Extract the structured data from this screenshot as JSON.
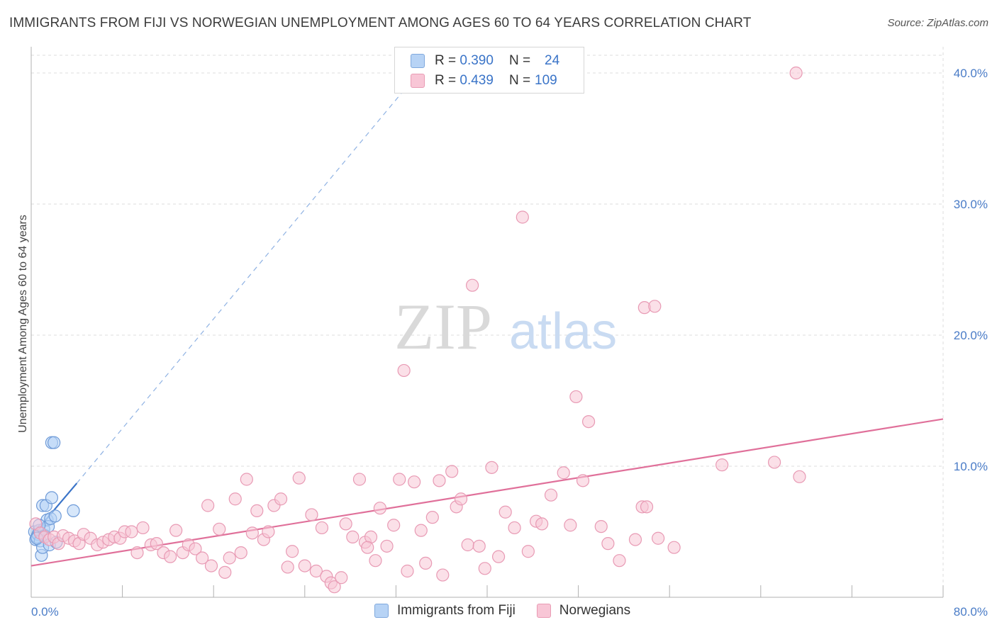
{
  "header": {
    "title": "IMMIGRANTS FROM FIJI VS NORWEGIAN UNEMPLOYMENT AMONG AGES 60 TO 64 YEARS CORRELATION CHART",
    "source": "Source: ZipAtlas.com"
  },
  "legend": {
    "rows": [
      {
        "r_label": "R =",
        "r_value": "0.390",
        "n_label": "N =",
        "n_value": "24"
      },
      {
        "r_label": "R =",
        "r_value": "0.439",
        "n_label": "N =",
        "n_value": "109"
      }
    ],
    "bottom": [
      "Immigrants from Fiji",
      "Norwegians"
    ]
  },
  "watermark": {
    "zip": "ZIP",
    "atlas": "atlas"
  },
  "colors": {
    "blue": "#3a74c8",
    "blue_fill": "#b7d3f5",
    "pink": "#e0709a",
    "pink_fill": "#f8c6d6",
    "grid": "#dcdcdc"
  },
  "chart_data": {
    "type": "scatter",
    "title": "IMMIGRANTS FROM FIJI VS NORWEGIAN UNEMPLOYMENT AMONG AGES 60 TO 64 YEARS CORRELATION CHART",
    "xlabel": "",
    "ylabel": "Unemployment Among Ages 60 to 64 years",
    "xlim": [
      0,
      80
    ],
    "ylim": [
      0,
      42
    ],
    "y_ticks": [
      10,
      20,
      30,
      40
    ],
    "y_tick_labels": [
      "10.0%",
      "20.0%",
      "30.0%",
      "40.0%"
    ],
    "x_tick_labels": [
      "0.0%",
      "80.0%"
    ],
    "series": [
      {
        "name": "Immigrants from Fiji",
        "color": "#3a74c8",
        "trend": {
          "x0": 0.2,
          "y0": 4.8,
          "x1": 4.0,
          "y1": 8.7,
          "dash_to_x": 33,
          "dash_to_y": 39
        },
        "points": [
          [
            0.3,
            5.0
          ],
          [
            0.4,
            4.4
          ],
          [
            0.5,
            4.6
          ],
          [
            0.6,
            4.8
          ],
          [
            0.7,
            5.1
          ],
          [
            0.8,
            4.3
          ],
          [
            0.9,
            3.2
          ],
          [
            1.0,
            3.8
          ],
          [
            1.0,
            7.0
          ],
          [
            1.1,
            5.2
          ],
          [
            1.2,
            4.7
          ],
          [
            1.3,
            7.0
          ],
          [
            1.4,
            5.9
          ],
          [
            1.5,
            5.4
          ],
          [
            1.6,
            4.0
          ],
          [
            1.7,
            6.0
          ],
          [
            1.8,
            7.6
          ],
          [
            1.8,
            11.8
          ],
          [
            2.0,
            11.8
          ],
          [
            2.1,
            6.2
          ],
          [
            0.5,
            4.5
          ],
          [
            2.2,
            4.2
          ],
          [
            3.7,
            6.6
          ],
          [
            0.7,
            5.5
          ]
        ]
      },
      {
        "name": "Norwegians",
        "color": "#e0709a",
        "trend": {
          "x0": 0,
          "y0": 2.4,
          "x1": 80,
          "y1": 13.6
        },
        "points": [
          [
            0.4,
            5.6
          ],
          [
            0.8,
            4.9
          ],
          [
            1.2,
            4.6
          ],
          [
            1.6,
            4.4
          ],
          [
            2.0,
            4.6
          ],
          [
            2.4,
            4.1
          ],
          [
            2.8,
            4.7
          ],
          [
            3.3,
            4.5
          ],
          [
            3.8,
            4.3
          ],
          [
            4.2,
            4.1
          ],
          [
            4.6,
            4.8
          ],
          [
            5.2,
            4.5
          ],
          [
            5.8,
            4.0
          ],
          [
            6.3,
            4.2
          ],
          [
            6.8,
            4.4
          ],
          [
            7.3,
            4.6
          ],
          [
            7.8,
            4.5
          ],
          [
            8.2,
            5.0
          ],
          [
            8.8,
            5.0
          ],
          [
            9.3,
            3.4
          ],
          [
            9.8,
            5.3
          ],
          [
            10.5,
            4.0
          ],
          [
            11.0,
            4.1
          ],
          [
            11.6,
            3.4
          ],
          [
            12.2,
            3.1
          ],
          [
            12.7,
            5.1
          ],
          [
            13.3,
            3.4
          ],
          [
            13.8,
            4.0
          ],
          [
            14.4,
            3.7
          ],
          [
            15.0,
            3.0
          ],
          [
            15.5,
            7.0
          ],
          [
            15.8,
            2.4
          ],
          [
            16.5,
            5.2
          ],
          [
            17.0,
            1.9
          ],
          [
            17.4,
            3.0
          ],
          [
            17.9,
            7.5
          ],
          [
            18.4,
            3.4
          ],
          [
            18.9,
            9.0
          ],
          [
            19.4,
            4.9
          ],
          [
            19.8,
            6.6
          ],
          [
            20.4,
            4.4
          ],
          [
            20.8,
            5.0
          ],
          [
            21.3,
            7.0
          ],
          [
            21.9,
            7.5
          ],
          [
            22.5,
            2.3
          ],
          [
            22.9,
            3.5
          ],
          [
            23.5,
            9.1
          ],
          [
            24.0,
            2.4
          ],
          [
            24.6,
            6.3
          ],
          [
            25.0,
            2.0
          ],
          [
            25.5,
            5.3
          ],
          [
            25.9,
            1.6
          ],
          [
            26.3,
            1.1
          ],
          [
            26.6,
            0.8
          ],
          [
            27.2,
            1.5
          ],
          [
            27.6,
            5.6
          ],
          [
            28.2,
            4.6
          ],
          [
            28.8,
            9.0
          ],
          [
            29.3,
            4.2
          ],
          [
            29.8,
            4.6
          ],
          [
            30.2,
            2.8
          ],
          [
            30.6,
            6.8
          ],
          [
            31.2,
            3.9
          ],
          [
            31.8,
            5.5
          ],
          [
            32.3,
            9.0
          ],
          [
            32.7,
            17.3
          ],
          [
            33.0,
            2.0
          ],
          [
            33.6,
            8.8
          ],
          [
            34.2,
            5.1
          ],
          [
            34.6,
            2.6
          ],
          [
            35.2,
            6.1
          ],
          [
            35.8,
            8.9
          ],
          [
            36.1,
            1.7
          ],
          [
            36.9,
            9.6
          ],
          [
            37.3,
            6.9
          ],
          [
            37.7,
            7.5
          ],
          [
            38.3,
            4.0
          ],
          [
            38.7,
            23.8
          ],
          [
            39.3,
            3.9
          ],
          [
            39.8,
            2.2
          ],
          [
            40.4,
            9.9
          ],
          [
            41.0,
            3.1
          ],
          [
            41.6,
            6.5
          ],
          [
            42.4,
            5.3
          ],
          [
            43.1,
            29.0
          ],
          [
            43.6,
            3.5
          ],
          [
            44.3,
            5.8
          ],
          [
            44.8,
            5.6
          ],
          [
            45.6,
            7.8
          ],
          [
            46.7,
            9.5
          ],
          [
            47.3,
            5.5
          ],
          [
            47.8,
            15.3
          ],
          [
            48.4,
            8.9
          ],
          [
            48.9,
            13.4
          ],
          [
            50.0,
            5.4
          ],
          [
            50.6,
            4.1
          ],
          [
            51.6,
            2.8
          ],
          [
            53.0,
            4.4
          ],
          [
            53.6,
            6.9
          ],
          [
            53.8,
            22.1
          ],
          [
            54.0,
            6.9
          ],
          [
            54.7,
            22.2
          ],
          [
            55.0,
            4.5
          ],
          [
            56.4,
            3.8
          ],
          [
            60.6,
            10.1
          ],
          [
            65.2,
            10.3
          ],
          [
            67.1,
            40.0
          ],
          [
            67.4,
            9.2
          ],
          [
            29.5,
            3.8
          ]
        ]
      }
    ]
  }
}
